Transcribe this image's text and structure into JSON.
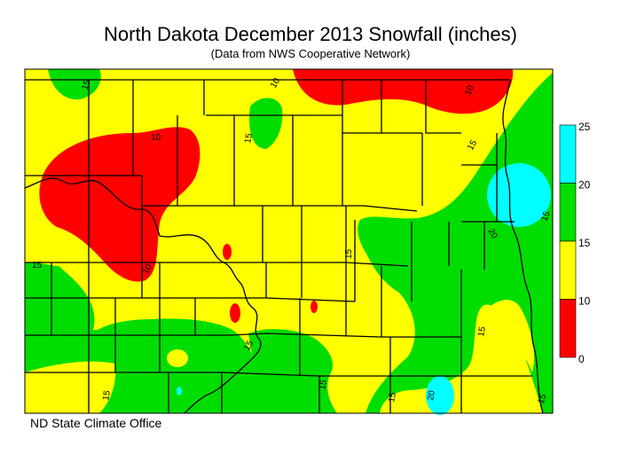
{
  "title": "North Dakota December 2013 Snowfall (inches)",
  "subtitle": "(Data from NWS Cooperative Network)",
  "credit": "ND State Climate Office",
  "legend": {
    "bins": [
      {
        "from": 0,
        "to": 10,
        "color": "#ff0000"
      },
      {
        "from": 10,
        "to": 15,
        "color": "#ffff00"
      },
      {
        "from": 15,
        "to": 20,
        "color": "#00dd00"
      },
      {
        "from": 20,
        "to": 25,
        "color": "#00ffff"
      }
    ],
    "tick_labels": [
      "25",
      "20",
      "15",
      "10",
      "0"
    ]
  },
  "contour_labels": [
    "15",
    "10",
    "10",
    "15",
    "10",
    "15",
    "20",
    "15",
    "10",
    "15",
    "15",
    "15",
    "15",
    "15",
    "15",
    "20",
    "15",
    "15"
  ],
  "colors": {
    "red": "#ff0000",
    "yellow": "#ffff00",
    "green": "#00dd00",
    "cyan": "#00ffff"
  }
}
